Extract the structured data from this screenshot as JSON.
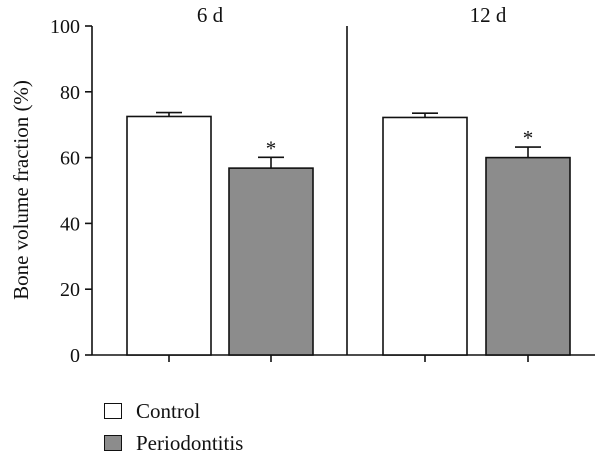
{
  "chart_data": {
    "type": "bar",
    "ylabel": "Bone volume fraction (%)",
    "ylim": [
      0,
      100
    ],
    "yticks": [
      0,
      20,
      40,
      60,
      80,
      100
    ],
    "panels": [
      {
        "title": "6 d",
        "categories": [
          "Control",
          "Periodontitis"
        ],
        "values": [
          72.5,
          56.8
        ],
        "errors": [
          1.2,
          3.3
        ],
        "annotations": [
          "",
          "*"
        ]
      },
      {
        "title": "12 d",
        "categories": [
          "Control",
          "Periodontitis"
        ],
        "values": [
          72.2,
          60.0
        ],
        "errors": [
          1.3,
          3.2
        ],
        "annotations": [
          "",
          "*"
        ]
      }
    ],
    "series": [
      {
        "name": "Control",
        "color": "#ffffff"
      },
      {
        "name": "Periodontitis",
        "color": "#8c8c8c"
      }
    ],
    "legend_position": "bottom-left",
    "grid": false
  }
}
